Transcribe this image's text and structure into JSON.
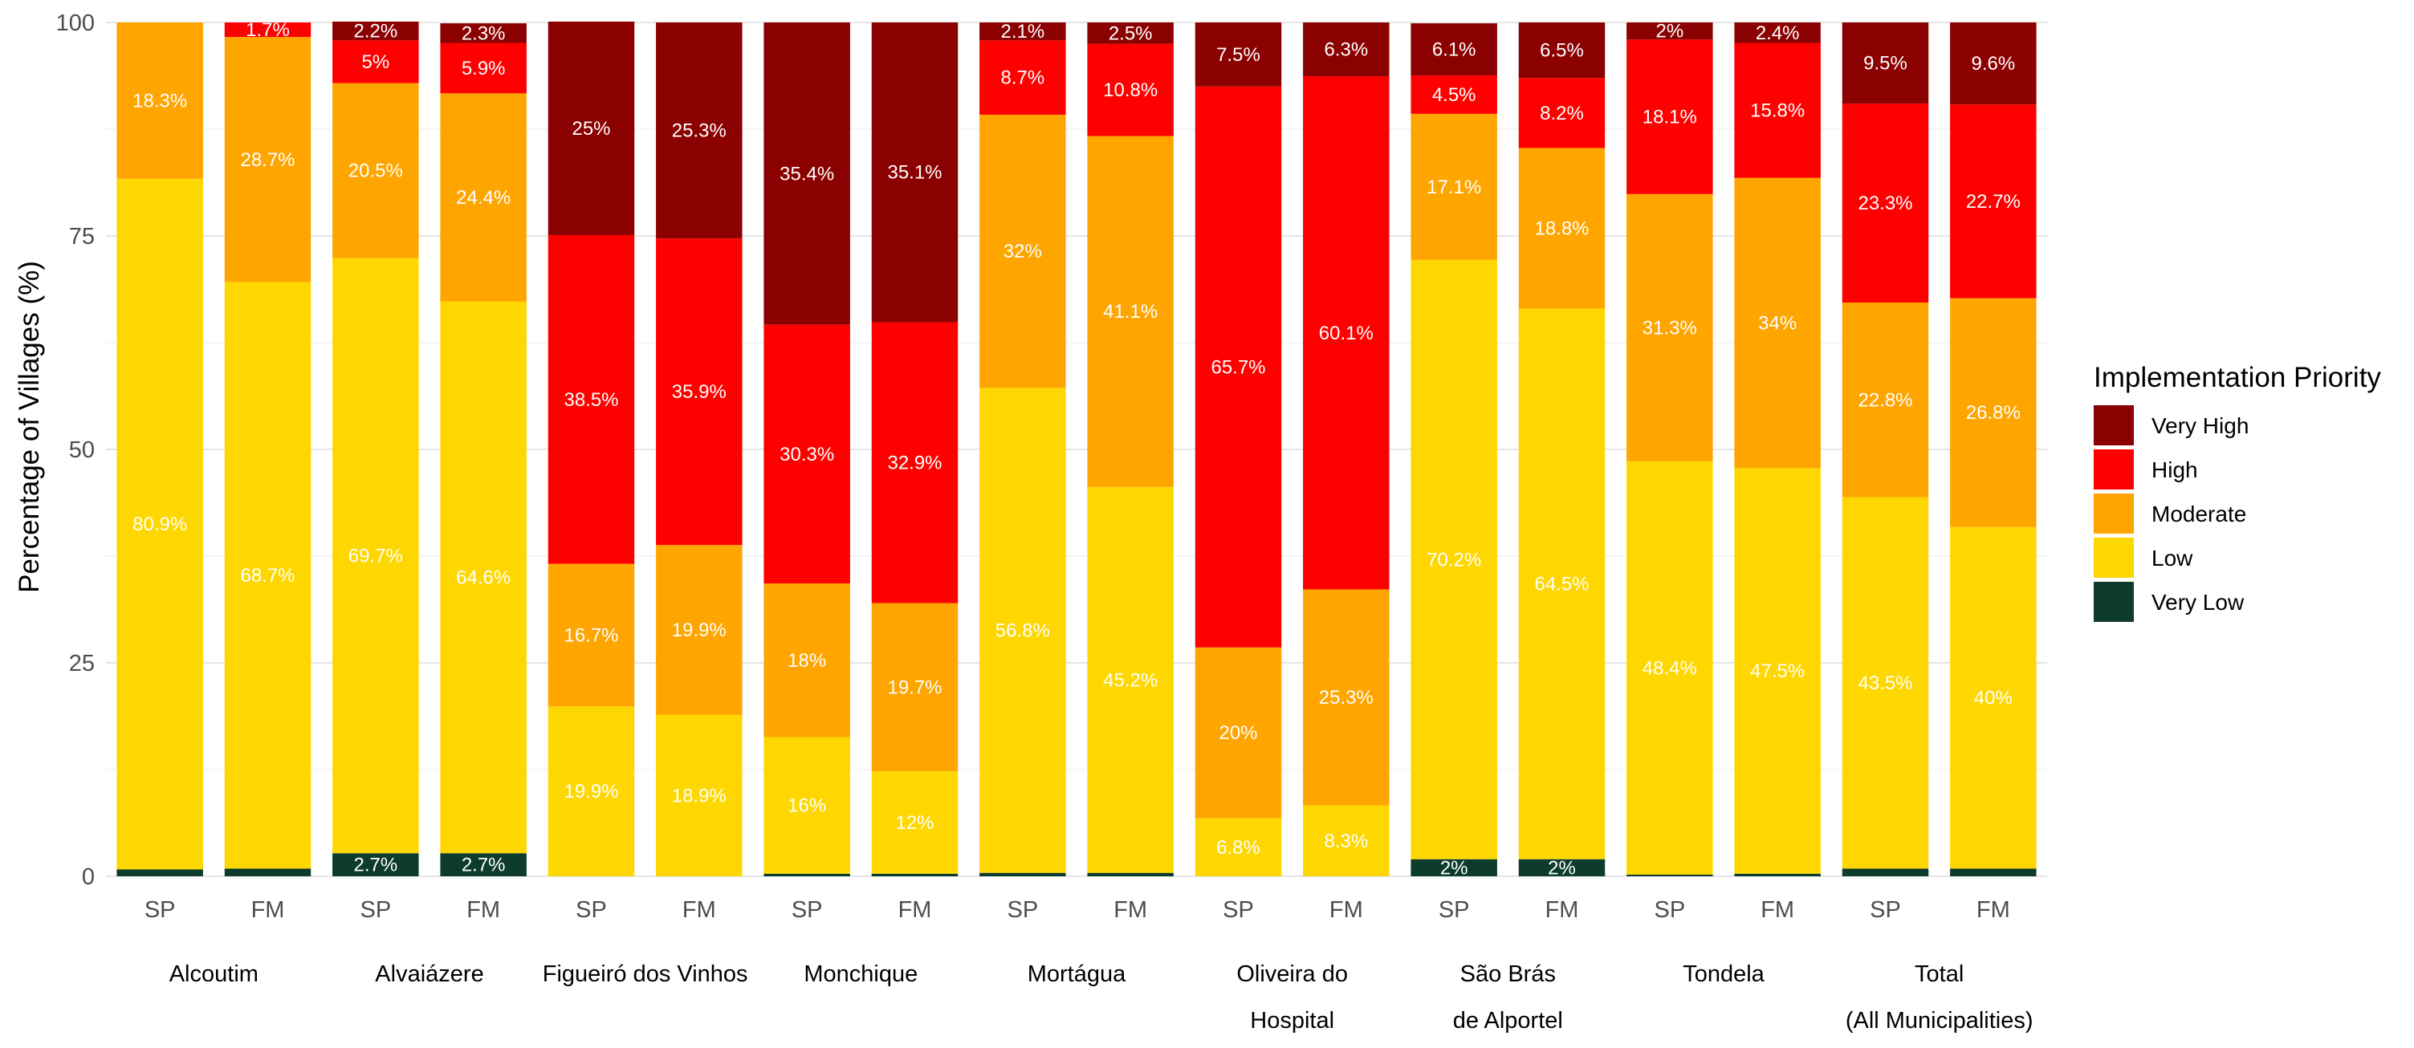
{
  "chart_data": {
    "type": "bar",
    "stacked": true,
    "title": "",
    "xlabel": "",
    "ylabel": "Percentage of Villages (%)",
    "ylim": [
      0,
      100
    ],
    "yticks": [
      "0",
      "25",
      "50",
      "75",
      "100"
    ],
    "grid": true,
    "legend": {
      "title": "Implementation Priority",
      "position": "right",
      "entries": [
        "Very High",
        "High",
        "Moderate",
        "Low",
        "Very Low"
      ]
    },
    "colors": {
      "Very Low": "#0d3b2e",
      "Low": "#ffd700",
      "Moderate": "#ffa500",
      "High": "#ff0000",
      "Very High": "#8b0000"
    },
    "groups": [
      {
        "name_lines": [
          "Alcoutim"
        ],
        "bars": [
          {
            "label": "SP",
            "values": {
              "Very Low": 0.8,
              "Low": 80.9,
              "Moderate": 18.3,
              "High": 0,
              "Very High": 0
            },
            "labels": {
              "Very Low": "",
              "Low": "80.9%",
              "Moderate": "18.3%",
              "High": "",
              "Very High": ""
            }
          },
          {
            "label": "FM",
            "values": {
              "Very Low": 0.9,
              "Low": 68.7,
              "Moderate": 28.7,
              "High": 1.7,
              "Very High": 0
            },
            "labels": {
              "Very Low": "",
              "Low": "68.7%",
              "Moderate": "28.7%",
              "High": "1.7%",
              "Very High": ""
            }
          }
        ]
      },
      {
        "name_lines": [
          "Alvaiázere"
        ],
        "bars": [
          {
            "label": "SP",
            "values": {
              "Very Low": 2.7,
              "Low": 69.7,
              "Moderate": 20.5,
              "High": 5.0,
              "Very High": 2.2
            },
            "labels": {
              "Very Low": "2.7%",
              "Low": "69.7%",
              "Moderate": "20.5%",
              "High": "5%",
              "Very High": "2.2%"
            }
          },
          {
            "label": "FM",
            "values": {
              "Very Low": 2.7,
              "Low": 64.6,
              "Moderate": 24.4,
              "High": 5.9,
              "Very High": 2.3
            },
            "labels": {
              "Very Low": "2.7%",
              "Low": "64.6%",
              "Moderate": "24.4%",
              "High": "5.9%",
              "Very High": "2.3%"
            }
          }
        ]
      },
      {
        "name_lines": [
          "Figueiró dos Vinhos"
        ],
        "bars": [
          {
            "label": "SP",
            "values": {
              "Very Low": 0,
              "Low": 19.9,
              "Moderate": 16.7,
              "High": 38.5,
              "Very High": 25.0
            },
            "labels": {
              "Very Low": "",
              "Low": "19.9%",
              "Moderate": "16.7%",
              "High": "38.5%",
              "Very High": "25%"
            }
          },
          {
            "label": "FM",
            "values": {
              "Very Low": 0,
              "Low": 18.9,
              "Moderate": 19.9,
              "High": 35.9,
              "Very High": 25.3
            },
            "labels": {
              "Very Low": "",
              "Low": "18.9%",
              "Moderate": "19.9%",
              "High": "35.9%",
              "Very High": "25.3%"
            }
          }
        ]
      },
      {
        "name_lines": [
          "Monchique"
        ],
        "bars": [
          {
            "label": "SP",
            "values": {
              "Very Low": 0.3,
              "Low": 16.0,
              "Moderate": 18.0,
              "High": 30.3,
              "Very High": 35.4
            },
            "labels": {
              "Very Low": "",
              "Low": "16%",
              "Moderate": "18%",
              "High": "30.3%",
              "Very High": "35.4%"
            }
          },
          {
            "label": "FM",
            "values": {
              "Very Low": 0.3,
              "Low": 12.0,
              "Moderate": 19.7,
              "High": 32.9,
              "Very High": 35.1
            },
            "labels": {
              "Very Low": "",
              "Low": "12%",
              "Moderate": "19.7%",
              "High": "32.9%",
              "Very High": "35.1%"
            }
          }
        ]
      },
      {
        "name_lines": [
          "Mortágua"
        ],
        "bars": [
          {
            "label": "SP",
            "values": {
              "Very Low": 0.4,
              "Low": 56.8,
              "Moderate": 32.0,
              "High": 8.7,
              "Very High": 2.1
            },
            "labels": {
              "Very Low": "",
              "Low": "56.8%",
              "Moderate": "32%",
              "High": "8.7%",
              "Very High": "2.1%"
            }
          },
          {
            "label": "FM",
            "values": {
              "Very Low": 0.4,
              "Low": 45.2,
              "Moderate": 41.1,
              "High": 10.8,
              "Very High": 2.5
            },
            "labels": {
              "Very Low": "",
              "Low": "45.2%",
              "Moderate": "41.1%",
              "High": "10.8%",
              "Very High": "2.5%"
            }
          }
        ]
      },
      {
        "name_lines": [
          "Oliveira do",
          "Hospital"
        ],
        "bars": [
          {
            "label": "SP",
            "values": {
              "Very Low": 0,
              "Low": 6.8,
              "Moderate": 20.0,
              "High": 65.7,
              "Very High": 7.5
            },
            "labels": {
              "Very Low": "",
              "Low": "6.8%",
              "Moderate": "20%",
              "High": "65.7%",
              "Very High": "7.5%"
            }
          },
          {
            "label": "FM",
            "values": {
              "Very Low": 0,
              "Low": 8.3,
              "Moderate": 25.3,
              "High": 60.1,
              "Very High": 6.3
            },
            "labels": {
              "Very Low": "",
              "Low": "8.3%",
              "Moderate": "25.3%",
              "High": "60.1%",
              "Very High": "6.3%"
            }
          }
        ]
      },
      {
        "name_lines": [
          "São Brás",
          "de Alportel"
        ],
        "bars": [
          {
            "label": "SP",
            "values": {
              "Very Low": 2.0,
              "Low": 70.2,
              "Moderate": 17.1,
              "High": 4.5,
              "Very High": 6.1
            },
            "labels": {
              "Very Low": "2%",
              "Low": "70.2%",
              "Moderate": "17.1%",
              "High": "4.5%",
              "Very High": "6.1%"
            }
          },
          {
            "label": "FM",
            "values": {
              "Very Low": 2.0,
              "Low": 64.5,
              "Moderate": 18.8,
              "High": 8.2,
              "Very High": 6.5
            },
            "labels": {
              "Very Low": "2%",
              "Low": "64.5%",
              "Moderate": "18.8%",
              "High": "8.2%",
              "Very High": "6.5%"
            }
          }
        ]
      },
      {
        "name_lines": [
          "Tondela"
        ],
        "bars": [
          {
            "label": "SP",
            "values": {
              "Very Low": 0.2,
              "Low": 48.4,
              "Moderate": 31.3,
              "High": 18.1,
              "Very High": 2.0
            },
            "labels": {
              "Very Low": "",
              "Low": "48.4%",
              "Moderate": "31.3%",
              "High": "18.1%",
              "Very High": "2%"
            }
          },
          {
            "label": "FM",
            "values": {
              "Very Low": 0.3,
              "Low": 47.5,
              "Moderate": 34.0,
              "High": 15.8,
              "Very High": 2.4
            },
            "labels": {
              "Very Low": "",
              "Low": "47.5%",
              "Moderate": "34%",
              "High": "15.8%",
              "Very High": "2.4%"
            }
          }
        ]
      },
      {
        "name_lines": [
          "Total",
          "(All Municipalities)"
        ],
        "bars": [
          {
            "label": "SP",
            "values": {
              "Very Low": 0.9,
              "Low": 43.5,
              "Moderate": 22.8,
              "High": 23.3,
              "Very High": 9.5
            },
            "labels": {
              "Very Low": "",
              "Low": "43.5%",
              "Moderate": "22.8%",
              "High": "23.3%",
              "Very High": "9.5%"
            }
          },
          {
            "label": "FM",
            "values": {
              "Very Low": 0.9,
              "Low": 40.0,
              "Moderate": 26.8,
              "High": 22.7,
              "Very High": 9.6
            },
            "labels": {
              "Very Low": "",
              "Low": "40%",
              "Moderate": "26.8%",
              "High": "22.7%",
              "Very High": "9.6%"
            }
          }
        ]
      }
    ]
  }
}
